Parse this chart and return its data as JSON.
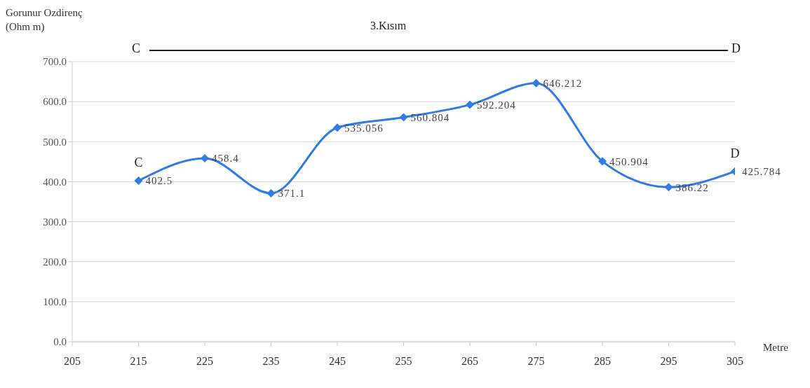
{
  "chart_data": {
    "type": "line",
    "title": "3.Kısım",
    "ylabel": "Gorunur Ozdirenç\n(Ohm m)",
    "xlabel": "Metre",
    "x": [
      215,
      225,
      235,
      245,
      255,
      265,
      275,
      285,
      295,
      305
    ],
    "series": [
      {
        "color": "#2f7be8",
        "values": [
          402.5,
          458.4,
          371.1,
          535.056,
          560.804,
          592.204,
          646.212,
          450.904,
          386.22,
          425.784
        ]
      }
    ],
    "xlim": [
      205,
      305
    ],
    "xticks": [
      205,
      215,
      225,
      235,
      245,
      255,
      265,
      275,
      285,
      295,
      305
    ],
    "ylim": [
      0,
      700
    ],
    "yticks": [
      {
        "value": 0,
        "label": "0.0"
      },
      {
        "value": 100,
        "label": "100.0"
      },
      {
        "value": 200,
        "label": "200.0"
      },
      {
        "value": 300,
        "label": "300.0"
      },
      {
        "value": 400,
        "label": "400.0"
      },
      {
        "value": 500,
        "label": "500.0"
      },
      {
        "value": 600,
        "label": "600.0"
      },
      {
        "value": 700,
        "label": "700.0"
      }
    ],
    "grid": "y",
    "marker": "diamond",
    "line_style": "solid",
    "data_labels": true,
    "annotations": [
      "C",
      "D",
      {
        "text": "C",
        "x": 215,
        "y": 402.5
      },
      {
        "text": "D",
        "x": 305,
        "y": 425.784
      }
    ]
  }
}
